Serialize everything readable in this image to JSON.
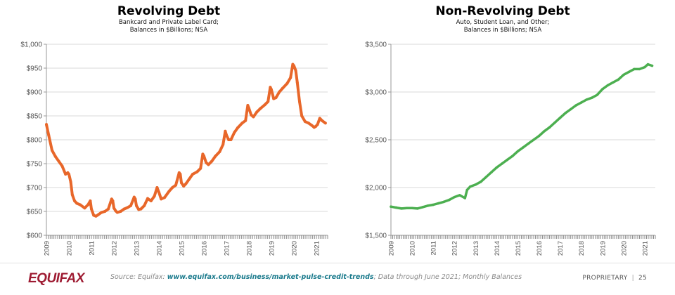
{
  "footer": {
    "logo": "EQUIFAX",
    "source_prefix": "Source: Equifax: ",
    "source_link": "www.equifax.com/business/market-pulse-credit-trends",
    "source_suffix": "; Data through June 2021; Monthly Balances",
    "proprietary": "PROPRIETARY",
    "separator": "|",
    "page_number": "25"
  },
  "chart_data": [
    {
      "type": "line",
      "title": "Revolving Debt",
      "subtitle_lines": [
        "Bankcard and Private Label Card;",
        "Balances in $Billions; NSA"
      ],
      "xlabel": "",
      "ylabel": "",
      "color": "#e8672a",
      "ylim": [
        600,
        1000
      ],
      "xlim": [
        2009,
        2021.5
      ],
      "grid": true,
      "legend": "none",
      "yticks": [
        600,
        650,
        700,
        750,
        800,
        850,
        900,
        950,
        1000
      ],
      "ytick_labels": [
        "$600",
        "$650",
        "$700",
        "$750",
        "$800",
        "$850",
        "$900",
        "$950",
        "$1,000"
      ],
      "xticks": [
        "2009",
        "2010",
        "2011",
        "2012",
        "2013",
        "2014",
        "2015",
        "2016",
        "2017",
        "2018",
        "2019",
        "2020",
        "2021"
      ],
      "series": [
        {
          "name": "Revolving Debt",
          "x": [
            2009.0,
            2009.1,
            2009.25,
            2009.4,
            2009.55,
            2009.7,
            2009.85,
            2009.95,
            2010.0,
            2010.08,
            2010.15,
            2010.25,
            2010.35,
            2010.5,
            2010.7,
            2010.85,
            2010.95,
            2011.0,
            2011.1,
            2011.2,
            2011.3,
            2011.45,
            2011.6,
            2011.75,
            2011.9,
            2011.95,
            2012.0,
            2012.08,
            2012.15,
            2012.3,
            2012.45,
            2012.6,
            2012.75,
            2012.9,
            2012.95,
            2013.0,
            2013.1,
            2013.2,
            2013.35,
            2013.5,
            2013.65,
            2013.8,
            2013.92,
            2014.0,
            2014.1,
            2014.25,
            2014.45,
            2014.6,
            2014.75,
            2014.9,
            2014.95,
            2015.0,
            2015.1,
            2015.2,
            2015.35,
            2015.5,
            2015.7,
            2015.85,
            2015.95,
            2016.0,
            2016.1,
            2016.2,
            2016.35,
            2016.5,
            2016.7,
            2016.85,
            2016.95,
            2017.0,
            2017.1,
            2017.2,
            2017.35,
            2017.5,
            2017.7,
            2017.85,
            2017.95,
            2018.0,
            2018.1,
            2018.2,
            2018.35,
            2018.5,
            2018.7,
            2018.85,
            2018.95,
            2019.0,
            2019.1,
            2019.2,
            2019.35,
            2019.5,
            2019.7,
            2019.85,
            2019.95,
            2020.0,
            2020.08,
            2020.15,
            2020.25,
            2020.35,
            2020.5,
            2020.65,
            2020.8,
            2020.9,
            2020.97,
            2021.05,
            2021.15,
            2021.25,
            2021.4
          ],
          "values": [
            832,
            810,
            778,
            765,
            755,
            745,
            728,
            731,
            728,
            712,
            685,
            672,
            667,
            664,
            657,
            664,
            672,
            655,
            642,
            640,
            643,
            648,
            650,
            655,
            676,
            672,
            657,
            651,
            648,
            650,
            655,
            658,
            662,
            680,
            676,
            662,
            654,
            655,
            662,
            677,
            672,
            682,
            700,
            690,
            676,
            679,
            692,
            700,
            705,
            731,
            728,
            710,
            703,
            708,
            718,
            728,
            733,
            740,
            770,
            766,
            752,
            748,
            755,
            765,
            775,
            790,
            818,
            810,
            800,
            800,
            815,
            825,
            835,
            840,
            872,
            866,
            852,
            848,
            858,
            865,
            873,
            880,
            910,
            905,
            886,
            888,
            900,
            908,
            918,
            930,
            958,
            955,
            945,
            920,
            880,
            850,
            838,
            835,
            830,
            826,
            828,
            832,
            845,
            840,
            835
          ]
        }
      ]
    },
    {
      "type": "line",
      "title": "Non-Revolving Debt",
      "subtitle_lines": [
        "Auto, Student Loan, and Other;",
        "Balances in $Billions; NSA"
      ],
      "xlabel": "",
      "ylabel": "",
      "color": "#4caf50",
      "ylim": [
        1500,
        3500
      ],
      "xlim": [
        2009,
        2021.5
      ],
      "grid": true,
      "legend": "none",
      "yticks": [
        1500,
        2000,
        2500,
        3000,
        3500
      ],
      "ytick_labels": [
        "$1,500",
        "$2,000",
        "$2,500",
        "$3,000",
        "$3,500"
      ],
      "xticks": [
        "2009",
        "2010",
        "2011",
        "2012",
        "2013",
        "2014",
        "2015",
        "2016",
        "2017",
        "2018",
        "2019",
        "2020",
        "2021"
      ],
      "series": [
        {
          "name": "Non-Revolving Debt",
          "x": [
            2009.0,
            2009.25,
            2009.5,
            2009.75,
            2010.0,
            2010.25,
            2010.5,
            2010.75,
            2011.0,
            2011.25,
            2011.5,
            2011.75,
            2012.0,
            2012.25,
            2012.5,
            2012.6,
            2012.75,
            2013.0,
            2013.25,
            2013.5,
            2013.75,
            2014.0,
            2014.25,
            2014.5,
            2014.75,
            2015.0,
            2015.25,
            2015.5,
            2015.75,
            2016.0,
            2016.25,
            2016.5,
            2016.75,
            2017.0,
            2017.25,
            2017.5,
            2017.75,
            2018.0,
            2018.25,
            2018.5,
            2018.75,
            2019.0,
            2019.25,
            2019.5,
            2019.75,
            2020.0,
            2020.25,
            2020.5,
            2020.75,
            2021.0,
            2021.15,
            2021.35
          ],
          "values": [
            1800,
            1790,
            1780,
            1785,
            1785,
            1780,
            1795,
            1810,
            1820,
            1835,
            1850,
            1870,
            1900,
            1920,
            1890,
            1975,
            2010,
            2030,
            2060,
            2110,
            2160,
            2210,
            2250,
            2290,
            2330,
            2380,
            2420,
            2460,
            2500,
            2540,
            2590,
            2630,
            2680,
            2730,
            2780,
            2820,
            2860,
            2890,
            2920,
            2940,
            2970,
            3030,
            3070,
            3100,
            3130,
            3180,
            3210,
            3240,
            3240,
            3260,
            3290,
            3275
          ]
        }
      ]
    }
  ]
}
